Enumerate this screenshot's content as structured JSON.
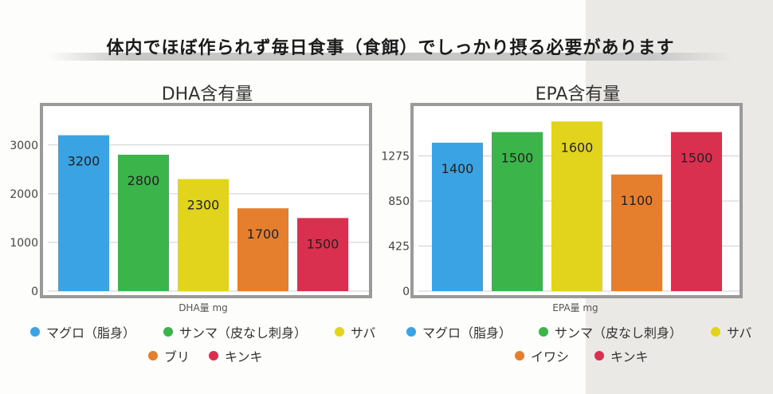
{
  "header": {
    "title": "体内でほぼ作られず毎日食事（食餌）でしっかり摂る必要があります"
  },
  "chart_data": [
    {
      "type": "bar",
      "title": "DHA含有量",
      "xlabel": "DHA量 mg",
      "ylabel": "",
      "categories": [
        "マグロ（脂身）",
        "サンマ（皮なし刺身）",
        "サバ",
        "ブリ",
        "キンキ"
      ],
      "values": [
        3200,
        2800,
        2300,
        1700,
        1500
      ],
      "colors": [
        "#3aa3e3",
        "#3bb54a",
        "#e2d31c",
        "#e57f2e",
        "#d9304f"
      ],
      "yticks": [
        0,
        1000,
        2000,
        3000
      ],
      "ylim": [
        0,
        3700
      ],
      "grid": true,
      "legend": "bottom"
    },
    {
      "type": "bar",
      "title": "EPA含有量",
      "xlabel": "EPA量 mg",
      "ylabel": "",
      "categories": [
        "マグロ（脂身）",
        "サンマ（皮なし刺身）",
        "サバ",
        "イワシ",
        "キンキ"
      ],
      "values": [
        1400,
        1500,
        1600,
        1100,
        1500
      ],
      "colors": [
        "#3aa3e3",
        "#3bb54a",
        "#e2d31c",
        "#e57f2e",
        "#d9304f"
      ],
      "yticks": [
        0,
        425,
        850,
        1275
      ],
      "ylim": [
        0,
        1700
      ],
      "grid": true,
      "legend": "bottom"
    }
  ]
}
